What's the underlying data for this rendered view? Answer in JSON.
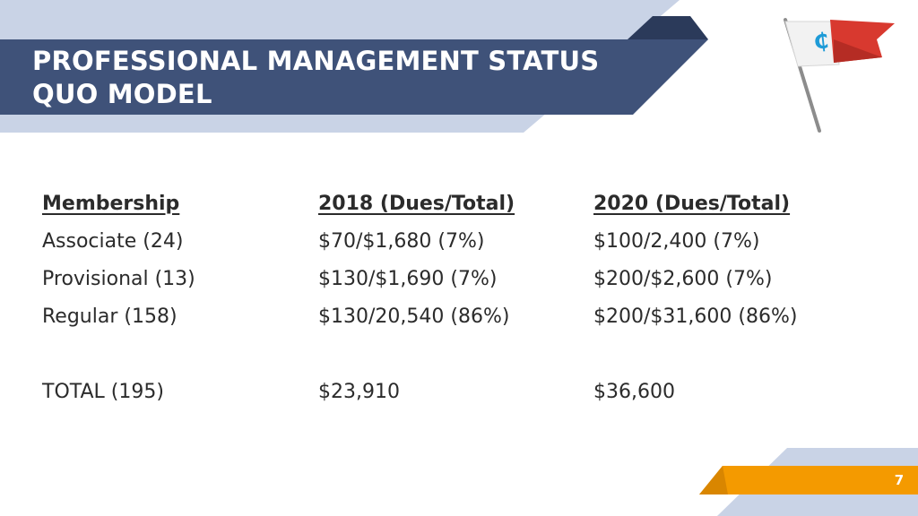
{
  "slide": {
    "title_lines": [
      "PROFESSIONAL MANAGEMENT STATUS",
      "QUO MODEL"
    ],
    "page_number": "7",
    "logo_glyph": "₵",
    "logo_icon": "pennant-flag-icon",
    "colors": {
      "header_navy": "#3f5279",
      "header_dark": "#2b3a5a",
      "band_light": "#c9d3e6",
      "accent_orange": "#f49a00",
      "flag_red": "#d8392f",
      "flag_white": "#f2f2f2",
      "logo_blue": "#1e9bd7",
      "text": "#2b2b2b"
    }
  },
  "table": {
    "headers": [
      "Membership",
      "2018 (Dues/Total)",
      "2020 (Dues/Total)"
    ],
    "rows": [
      [
        "Associate (24)",
        "$70/$1,680 (7%)",
        "$100/2,400 (7%)"
      ],
      [
        "Provisional (13)",
        "$130/$1,690 (7%)",
        "$200/$2,600 (7%)"
      ],
      [
        "Regular (158)",
        "$130/20,540 (86%)",
        "$200/$31,600 (86%)"
      ]
    ],
    "total": [
      "TOTAL (195)",
      "$23,910",
      "$36,600"
    ]
  }
}
